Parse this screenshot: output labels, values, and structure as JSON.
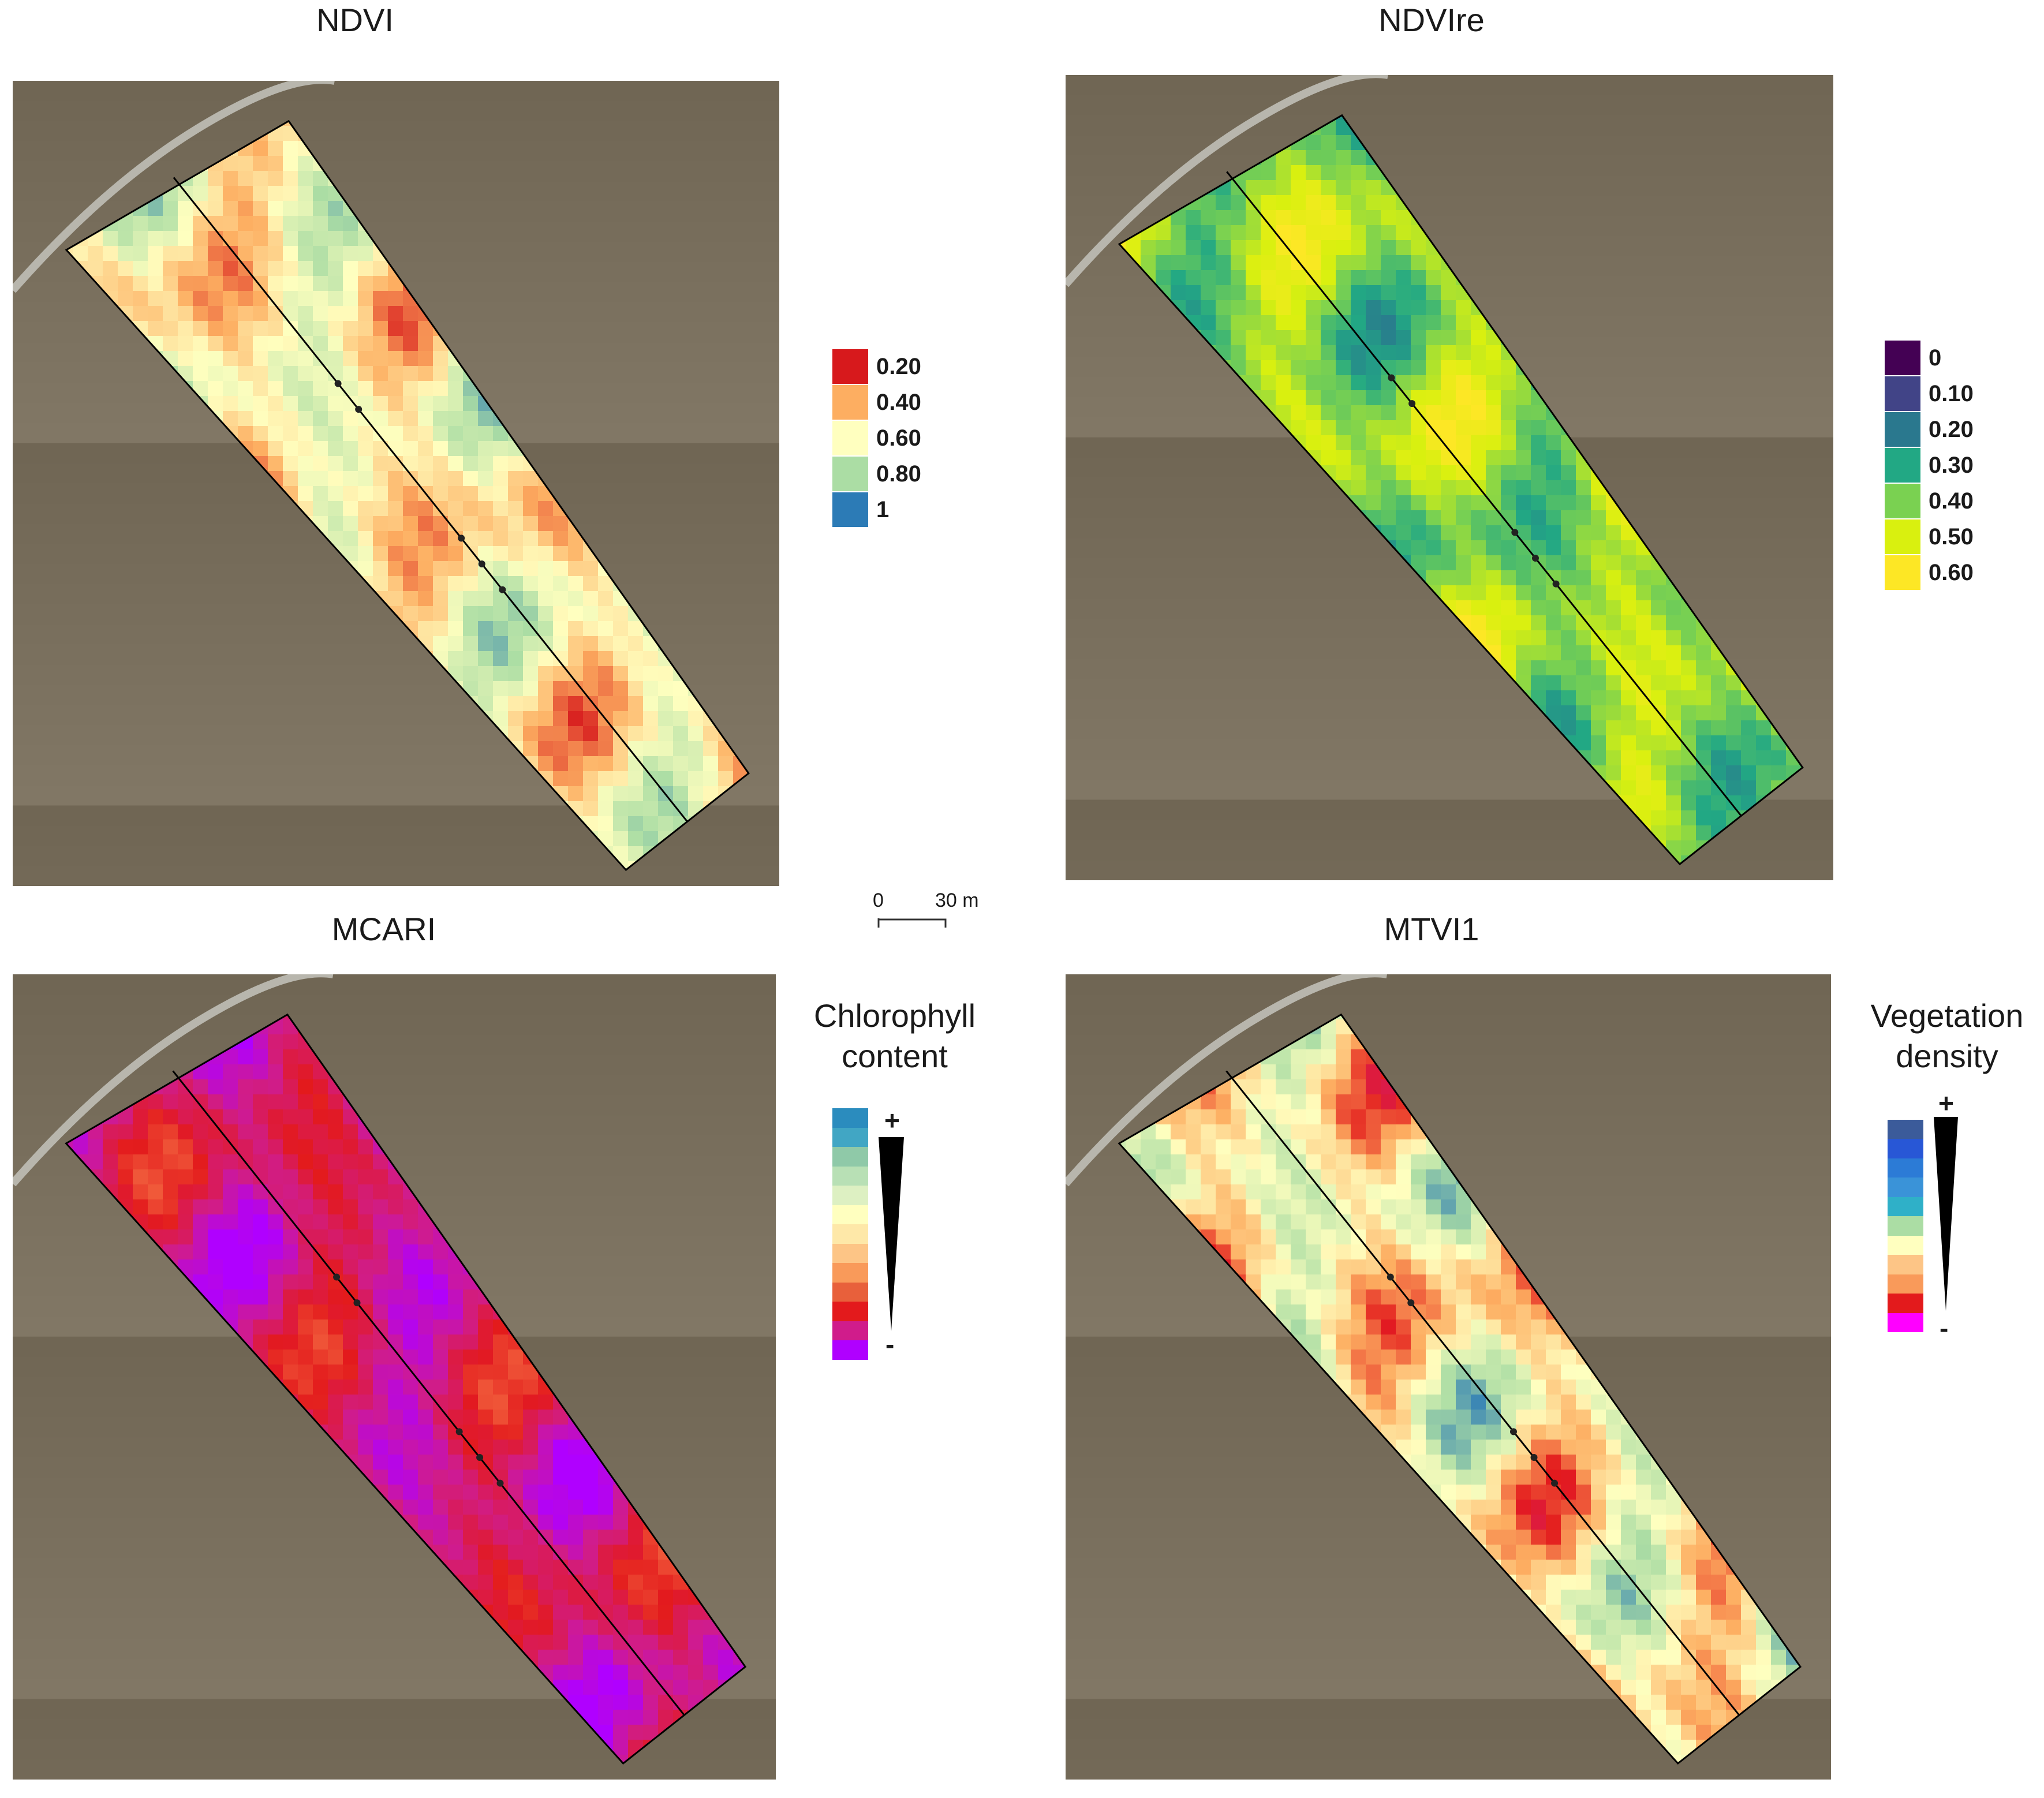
{
  "panels": [
    {
      "id": "ndvi",
      "title": "NDVI",
      "palette": [
        "#2c7bb6",
        "#abdda4",
        "#ffffbf",
        "#fdae61",
        "#d7191c"
      ],
      "start": 0.55
    },
    {
      "id": "ndvire",
      "title": "NDVIre",
      "palette": [
        "#fde725",
        "#d9f00f",
        "#7ad151",
        "#22a884",
        "#2a788e",
        "#414487"
      ],
      "start": 0.35
    },
    {
      "id": "mcari",
      "title": "MCARI",
      "palette": [
        "#ffffbf",
        "#f46d43",
        "#e31a1c",
        "#d01c8b",
        "#b000ff"
      ],
      "start": 0.7
    },
    {
      "id": "mtvi1",
      "title": "MTVI1",
      "palette": [
        "#2c7bb6",
        "#abdda4",
        "#ffffbf",
        "#fdae61",
        "#e31a1c",
        "#d01c8b"
      ],
      "start": 0.45
    }
  ],
  "legends": {
    "ndvi": [
      {
        "label": "0.20",
        "color": "#d7191c"
      },
      {
        "label": "0.40",
        "color": "#fdae61"
      },
      {
        "label": "0.60",
        "color": "#ffffbf"
      },
      {
        "label": "0.80",
        "color": "#abdda4"
      },
      {
        "label": "1",
        "color": "#2c7bb6"
      }
    ],
    "ndvire": [
      {
        "label": "0",
        "color": "#440154"
      },
      {
        "label": "0.10",
        "color": "#414487"
      },
      {
        "label": "0.20",
        "color": "#2a788e"
      },
      {
        "label": "0.30",
        "color": "#22a884"
      },
      {
        "label": "0.40",
        "color": "#7ad151"
      },
      {
        "label": "0.50",
        "color": "#d9f00f"
      },
      {
        "label": "0.60",
        "color": "#fde725"
      }
    ],
    "chlorophyll": {
      "title_line1": "Chlorophyll",
      "title_line2": "content",
      "plus": "+",
      "minus": "-",
      "colors": [
        "#2b8cbe",
        "#41a6c4",
        "#8fc9a8",
        "#b8e0b5",
        "#ddf0c2",
        "#ffffbf",
        "#fee8a8",
        "#fdc586",
        "#f99a5a",
        "#e8603b",
        "#e31a1c",
        "#d01c8b",
        "#b000ff"
      ]
    },
    "vegetation": {
      "title_line1": "Vegetation",
      "title_line2": "density",
      "plus": "+",
      "minus": "-",
      "colors": [
        "#3b5b9a",
        "#2857d6",
        "#2c7bd6",
        "#3a93d8",
        "#2fb0c8",
        "#abdda4",
        "#ffffbf",
        "#fdc586",
        "#f99a5a",
        "#e31a1c",
        "#ff00ff"
      ]
    }
  },
  "scale": {
    "zero": "0",
    "distance": "30 m"
  },
  "colors": {
    "soil": "#6e6452",
    "road": "#b8b6ad",
    "boundary": "#000000"
  }
}
